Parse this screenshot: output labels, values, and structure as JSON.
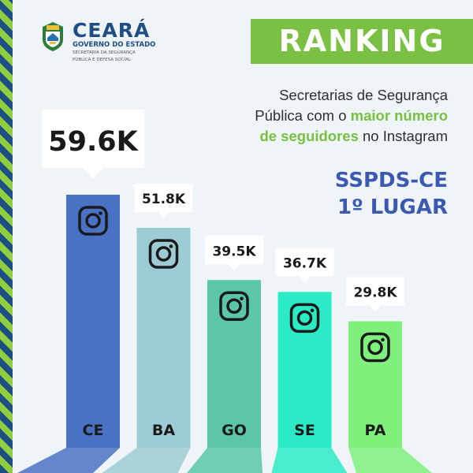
{
  "brand": {
    "name": "CEARÁ",
    "tagline": "GOVERNO DO ESTADO",
    "dept_line1": "SECRETARIA DA SEGURANÇA",
    "dept_line2": "PÚBLICA E DEFESA SOCIAL"
  },
  "banner": {
    "label": "RANKING"
  },
  "subtitle": {
    "part1": "Secretarias de Segurança",
    "part2": "Pública com o ",
    "highlight1": "maior número",
    "part3": "de seguidores",
    "part4": " no Instagram"
  },
  "winner": {
    "line1": "SSPDS-CE",
    "line2": "1º LUGAR"
  },
  "colors": {
    "accent_green": "#79c043",
    "accent_blue": "#3c58b0",
    "brand_blue": "#1f4e86"
  },
  "chart_data": {
    "type": "bar",
    "categories": [
      "CE",
      "BA",
      "GO",
      "SE",
      "PA"
    ],
    "values": [
      59.6,
      51.8,
      39.5,
      36.7,
      29.8
    ],
    "value_labels": [
      "59.6K",
      "51.8K",
      "39.5K",
      "36.7K",
      "29.8K"
    ],
    "unit": "K",
    "bar_colors": [
      "#4a72c4",
      "#9ccbd3",
      "#5bc7a8",
      "#2bebc6",
      "#7ff07c"
    ],
    "icon": "instagram-icon",
    "title": "",
    "xlabel": "",
    "ylabel": "",
    "grid": false
  }
}
